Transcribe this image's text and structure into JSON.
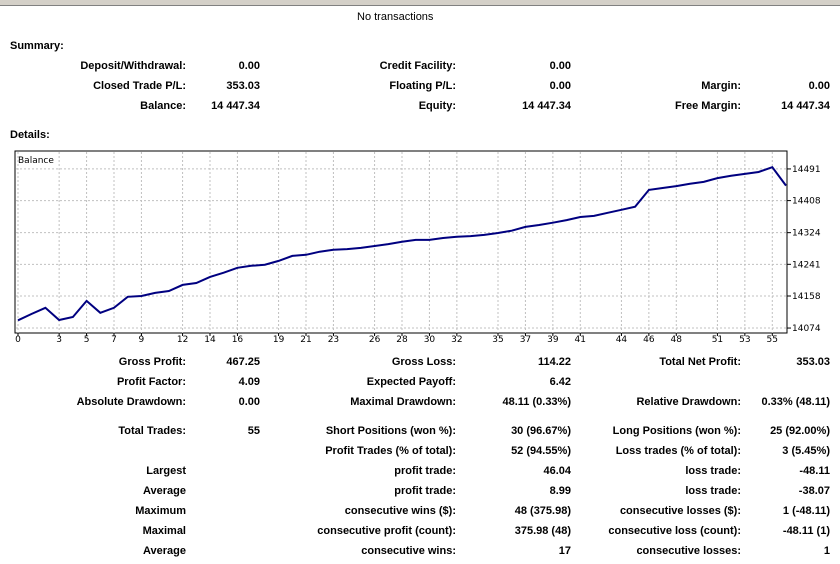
{
  "no_transactions": "No transactions",
  "summary": {
    "title": "Summary:",
    "rows": [
      [
        "Deposit/Withdrawal:",
        "0.00",
        "Credit Facility:",
        "0.00",
        null,
        null
      ],
      [
        "Closed Trade P/L:",
        "353.03",
        "Floating P/L:",
        "0.00",
        "Margin:",
        "0.00"
      ],
      [
        "Balance:",
        "14 447.34",
        "Equity:",
        "14 447.34",
        "Free Margin:",
        "14 447.34"
      ]
    ]
  },
  "details": {
    "title": "Details:",
    "rows": [
      [
        "Gross Profit:",
        "467.25",
        "Gross Loss:",
        "114.22",
        "Total Net Profit:",
        "353.03"
      ],
      [
        "Profit Factor:",
        "4.09",
        "Expected Payoff:",
        "6.42",
        null,
        null
      ],
      [
        "Absolute Drawdown:",
        "0.00",
        "Maximal Drawdown:",
        "48.11 (0.33%)",
        "Relative Drawdown:",
        "0.33% (48.11)"
      ],
      [
        "Total Trades:",
        "55",
        "Short Positions (won %):",
        "30 (96.67%)",
        "Long Positions (won %):",
        "25 (92.00%)"
      ],
      [
        null,
        null,
        "Profit Trades (% of total):",
        "52 (94.55%)",
        "Loss trades (% of total):",
        "3 (5.45%)"
      ],
      [
        "Largest",
        null,
        "profit trade:",
        "46.04",
        "loss trade:",
        "-48.11"
      ],
      [
        "Average",
        null,
        "profit trade:",
        "8.99",
        "loss trade:",
        "-38.07"
      ],
      [
        "Maximum",
        null,
        "consecutive wins ($):",
        "48 (375.98)",
        "consecutive losses ($):",
        "1 (-48.11)"
      ],
      [
        "Maximal",
        null,
        "consecutive profit (count):",
        "375.98 (48)",
        "consecutive loss (count):",
        "-48.11 (1)"
      ],
      [
        "Average",
        null,
        "consecutive wins:",
        "17",
        "consecutive losses:",
        "1"
      ]
    ]
  },
  "chart_data": {
    "type": "line",
    "title": "Balance",
    "color": "#000080",
    "grid": true,
    "x": [
      0,
      1,
      2,
      3,
      4,
      5,
      6,
      7,
      8,
      9,
      10,
      11,
      12,
      13,
      14,
      15,
      16,
      17,
      18,
      19,
      20,
      21,
      22,
      23,
      24,
      25,
      26,
      27,
      28,
      29,
      30,
      31,
      32,
      33,
      34,
      35,
      36,
      37,
      38,
      39,
      40,
      41,
      42,
      43,
      44,
      45,
      46,
      47,
      48,
      49,
      50,
      51,
      52,
      53,
      54,
      55,
      56
    ],
    "values": [
      14094.31,
      14111,
      14127,
      14095,
      14103,
      14145,
      14114,
      14127,
      14156,
      14158,
      14166,
      14171,
      14187,
      14192,
      14208,
      14219,
      14232,
      14237,
      14240,
      14250,
      14263,
      14266,
      14274,
      14279,
      14281,
      14284,
      14289,
      14294,
      14300,
      14305,
      14305,
      14310,
      14313,
      14315,
      14318,
      14323,
      14329,
      14339,
      14344,
      14350,
      14357,
      14365,
      14368,
      14376,
      14384,
      14392,
      14436,
      14441,
      14446,
      14452,
      14457,
      14467,
      14473,
      14478,
      14483,
      14495.45,
      14447.34
    ],
    "xlim": [
      0,
      56
    ],
    "xticks": [
      0,
      3,
      5,
      7,
      9,
      12,
      14,
      16,
      19,
      21,
      23,
      26,
      28,
      30,
      32,
      35,
      37,
      39,
      41,
      44,
      46,
      48,
      51,
      53,
      55
    ],
    "ylim": [
      14061,
      14538
    ],
    "yticks": [
      14074,
      14158,
      14241,
      14324,
      14408,
      14491
    ]
  }
}
